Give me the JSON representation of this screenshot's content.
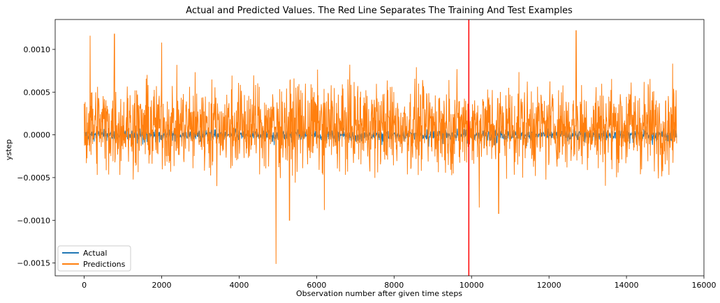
{
  "chart_data": {
    "type": "line",
    "title": "Actual and Predicted Values. The Red Line Separates The Training And Test Examples",
    "xlabel": "Observation number after given time steps",
    "ylabel": "ystep",
    "xlim": [
      -750,
      16000
    ],
    "ylim": [
      -0.00165,
      0.00135
    ],
    "x_ticks": [
      0,
      2000,
      4000,
      6000,
      8000,
      10000,
      12000,
      14000,
      16000
    ],
    "x_tick_labels": [
      "0",
      "2000",
      "4000",
      "6000",
      "8000",
      "10000",
      "12000",
      "14000",
      "16000"
    ],
    "y_ticks": [
      -0.0015,
      -0.001,
      -0.0005,
      0.0,
      0.0005,
      0.001
    ],
    "y_tick_labels": [
      "−0.0015",
      "−0.0010",
      "−0.0005",
      "0.0000",
      "0.0005",
      "0.0010"
    ],
    "n_points": 15300,
    "split_x": 9930,
    "split_color": "#ff0000",
    "legend_position": "lower-left",
    "series": [
      {
        "name": "Actual",
        "color": "#1f77b4",
        "mean": 0.0,
        "spread": 6e-05
      },
      {
        "name": "Predictions",
        "color": "#ff7f0e",
        "mean": 0.0001,
        "spread": 0.00025,
        "max": 0.00122,
        "min": -0.00151,
        "peaks": [
          {
            "x": 150,
            "y": 0.00116
          },
          {
            "x": 780,
            "y": 0.00118
          },
          {
            "x": 2000,
            "y": 0.00108
          },
          {
            "x": 12700,
            "y": 0.00122
          },
          {
            "x": 4950,
            "y": -0.00151
          },
          {
            "x": 5300,
            "y": -0.001
          },
          {
            "x": 6200,
            "y": -0.00088
          },
          {
            "x": 10200,
            "y": -0.00085
          },
          {
            "x": 10700,
            "y": -0.00092
          }
        ]
      }
    ]
  }
}
